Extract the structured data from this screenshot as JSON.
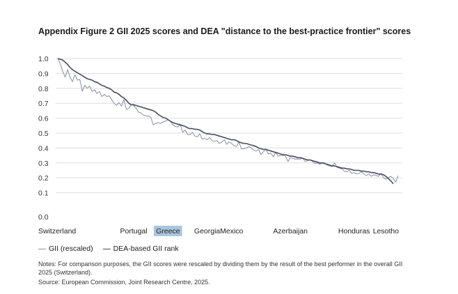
{
  "title": "Appendix Figure 2 GII 2025 scores and DEA \"distance to the best-practice frontier\" scores",
  "legend": {
    "gii_label": "GII (rescaled)",
    "dea_label": "DEA-based GII rank"
  },
  "notes": "Notes: For comparison purposes, the GII scores were rescaled by dividing them by the result of the best performer in the overall GII 2025 (Switzerland).",
  "source": "Source: European Commission, Joint Research Centre, 2025.",
  "colors": {
    "gii": "#8c8ca6",
    "dea": "#4a4a66",
    "grid": "#dddddd",
    "highlight": "#a9c6dd"
  },
  "chart_data": {
    "type": "line",
    "yticks": [
      "1.0",
      "0.9",
      "0.8",
      "0.7",
      "0.6",
      "0.5",
      "0.4",
      "0.3",
      "0.2",
      "0.1",
      "0.0"
    ],
    "ylim": [
      0.0,
      1.0
    ],
    "grid": true,
    "legend_position": "bottom-left",
    "x_labels": [
      {
        "label": "Switzerland",
        "index": 0
      },
      {
        "label": "Portugal",
        "index": 31
      },
      {
        "label": "Greece",
        "index": 45,
        "highlighted": true
      },
      {
        "label": "Georgia",
        "index": 61
      },
      {
        "label": "Mexico",
        "index": 71
      },
      {
        "label": "Azerbaijan",
        "index": 95
      },
      {
        "label": "Honduras",
        "index": 121
      },
      {
        "label": "Lesotho",
        "index": 134
      }
    ],
    "series": [
      {
        "name": "GII (rescaled)",
        "values": [
          1.0,
          0.965,
          0.915,
          0.875,
          0.925,
          0.875,
          0.845,
          0.89,
          0.855,
          0.86,
          0.78,
          0.82,
          0.8,
          0.815,
          0.78,
          0.79,
          0.765,
          0.78,
          0.745,
          0.76,
          0.745,
          0.75,
          0.725,
          0.7,
          0.685,
          0.705,
          0.68,
          0.725,
          0.66,
          0.665,
          0.69,
          0.685,
          0.665,
          0.64,
          0.635,
          0.62,
          0.615,
          0.615,
          0.605,
          0.555,
          0.565,
          0.57,
          0.565,
          0.575,
          0.58,
          0.59,
          0.58,
          0.555,
          0.545,
          0.54,
          0.56,
          0.505,
          0.52,
          0.49,
          0.49,
          0.505,
          0.48,
          0.475,
          0.495,
          0.46,
          0.465,
          0.455,
          0.47,
          0.45,
          0.445,
          0.45,
          0.43,
          0.44,
          0.455,
          0.425,
          0.44,
          0.43,
          0.415,
          0.41,
          0.44,
          0.395,
          0.395,
          0.4,
          0.41,
          0.4,
          0.385,
          0.38,
          0.39,
          0.355,
          0.375,
          0.395,
          0.36,
          0.365,
          0.34,
          0.37,
          0.345,
          0.35,
          0.35,
          0.345,
          0.31,
          0.335,
          0.33,
          0.325,
          0.325,
          0.325,
          0.335,
          0.31,
          0.315,
          0.32,
          0.31,
          0.295,
          0.3,
          0.29,
          0.3,
          0.3,
          0.285,
          0.28,
          0.275,
          0.3,
          0.27,
          0.265,
          0.26,
          0.245,
          0.24,
          0.25,
          0.23,
          0.235,
          0.225,
          0.23,
          0.24,
          0.225,
          0.215,
          0.225,
          0.21,
          0.22,
          0.215,
          0.21,
          0.23,
          0.2,
          0.19,
          0.2,
          0.21,
          0.195,
          0.17,
          0.215
        ]
      },
      {
        "name": "DEA-based GII rank",
        "values": [
          1.0,
          0.995,
          0.99,
          0.975,
          0.96,
          0.94,
          0.925,
          0.915,
          0.905,
          0.895,
          0.885,
          0.875,
          0.865,
          0.86,
          0.855,
          0.845,
          0.84,
          0.83,
          0.82,
          0.815,
          0.805,
          0.8,
          0.79,
          0.775,
          0.77,
          0.76,
          0.745,
          0.735,
          0.72,
          0.7,
          0.69,
          0.69,
          0.685,
          0.68,
          0.675,
          0.67,
          0.665,
          0.66,
          0.655,
          0.65,
          0.64,
          0.625,
          0.615,
          0.605,
          0.6,
          0.59,
          0.58,
          0.57,
          0.565,
          0.56,
          0.555,
          0.55,
          0.545,
          0.535,
          0.53,
          0.53,
          0.525,
          0.525,
          0.52,
          0.51,
          0.5,
          0.495,
          0.495,
          0.49,
          0.49,
          0.485,
          0.48,
          0.475,
          0.47,
          0.465,
          0.46,
          0.455,
          0.455,
          0.45,
          0.44,
          0.435,
          0.43,
          0.43,
          0.425,
          0.42,
          0.415,
          0.41,
          0.4,
          0.395,
          0.39,
          0.39,
          0.385,
          0.38,
          0.375,
          0.37,
          0.365,
          0.36,
          0.355,
          0.355,
          0.35,
          0.345,
          0.345,
          0.34,
          0.335,
          0.335,
          0.33,
          0.325,
          0.32,
          0.32,
          0.315,
          0.31,
          0.305,
          0.3,
          0.3,
          0.295,
          0.29,
          0.285,
          0.28,
          0.28,
          0.275,
          0.27,
          0.265,
          0.265,
          0.26,
          0.26,
          0.255,
          0.25,
          0.25,
          0.25,
          0.245,
          0.245,
          0.24,
          0.24,
          0.235,
          0.235,
          0.23,
          0.225,
          0.225,
          0.22,
          0.21,
          0.195,
          0.18,
          0.16
        ]
      }
    ]
  }
}
